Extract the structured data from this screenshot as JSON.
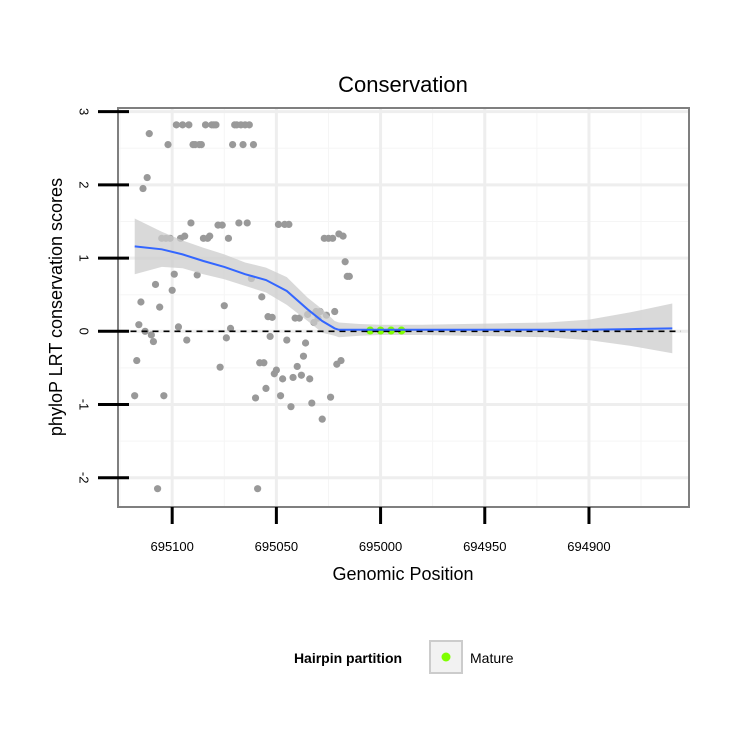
{
  "chart_data": {
    "type": "scatter",
    "title": "Conservation",
    "xlabel": "Genomic Position",
    "ylabel": "phyloP LRT conservation scores",
    "x_reversed": true,
    "xlim": [
      695126,
      694852
    ],
    "ylim": [
      -2.4,
      3.05
    ],
    "x_ticks": [
      695100,
      695050,
      695000,
      694950,
      694900
    ],
    "x_tick_labels": [
      "695100",
      "695050",
      "695000",
      "694950",
      "694900"
    ],
    "y_ticks": [
      -2,
      -1,
      0,
      1,
      2,
      3
    ],
    "y_tick_labels": [
      "-2",
      "-1",
      "0",
      "1",
      "2",
      "3"
    ],
    "grid": true,
    "reference_line": {
      "y": 0,
      "style": "dashed"
    },
    "colors": {
      "points": "#999999",
      "smooth": "#3366ff",
      "ribbon": "#cccccc",
      "mature": "#7fff00",
      "reference": "#000000"
    },
    "series": [
      {
        "name": "scores",
        "points": [
          [
            695118,
            -0.88
          ],
          [
            695117,
            -0.4
          ],
          [
            695116,
            0.09
          ],
          [
            695115,
            0.4
          ],
          [
            695114,
            1.95
          ],
          [
            695113,
            0.0
          ],
          [
            695112,
            2.1
          ],
          [
            695111,
            2.7
          ],
          [
            695110,
            -0.05
          ],
          [
            695109,
            -0.14
          ],
          [
            695108,
            0.64
          ],
          [
            695107,
            -2.15
          ],
          [
            695106,
            0.33
          ],
          [
            695105,
            1.27
          ],
          [
            695104,
            -0.88
          ],
          [
            695103,
            1.27
          ],
          [
            695102,
            2.55
          ],
          [
            695101,
            1.27
          ],
          [
            695100,
            0.56
          ],
          [
            695099,
            0.78
          ],
          [
            695098,
            2.82
          ],
          [
            695097,
            0.06
          ],
          [
            695096,
            1.27
          ],
          [
            695095,
            2.82
          ],
          [
            695094,
            1.3
          ],
          [
            695093,
            -0.12
          ],
          [
            695092,
            2.82
          ],
          [
            695091,
            1.48
          ],
          [
            695090,
            2.55
          ],
          [
            695089,
            2.55
          ],
          [
            695088,
            0.77
          ],
          [
            695087,
            2.55
          ],
          [
            695086,
            2.55
          ],
          [
            695085,
            1.27
          ],
          [
            695084,
            2.82
          ],
          [
            695083,
            1.27
          ],
          [
            695082,
            1.3
          ],
          [
            695081,
            2.82
          ],
          [
            695080,
            2.82
          ],
          [
            695079,
            2.82
          ],
          [
            695078,
            1.45
          ],
          [
            695077,
            -0.49
          ],
          [
            695076,
            1.45
          ],
          [
            695075,
            0.35
          ],
          [
            695074,
            -0.09
          ],
          [
            695073,
            1.27
          ],
          [
            695072,
            0.04
          ],
          [
            695071,
            2.55
          ],
          [
            695070,
            2.82
          ],
          [
            695069,
            2.82
          ],
          [
            695068,
            1.48
          ],
          [
            695067,
            2.82
          ],
          [
            695066,
            2.55
          ],
          [
            695065,
            2.82
          ],
          [
            695064,
            1.48
          ],
          [
            695063,
            2.82
          ],
          [
            695062,
            0.72
          ],
          [
            695061,
            2.55
          ],
          [
            695060,
            -0.91
          ],
          [
            695059,
            -2.15
          ],
          [
            695058,
            -0.43
          ],
          [
            695057,
            0.47
          ],
          [
            695056,
            -0.43
          ],
          [
            695055,
            -0.78
          ],
          [
            695054,
            0.2
          ],
          [
            695053,
            -0.07
          ],
          [
            695052,
            0.19
          ],
          [
            695051,
            -0.58
          ],
          [
            695050,
            -0.53
          ],
          [
            695049,
            1.46
          ],
          [
            695048,
            -0.88
          ],
          [
            695047,
            -0.65
          ],
          [
            695046,
            1.46
          ],
          [
            695045,
            -0.12
          ],
          [
            695044,
            1.46
          ],
          [
            695043,
            -1.03
          ],
          [
            695042,
            -0.63
          ],
          [
            695041,
            0.18
          ],
          [
            695040,
            -0.48
          ],
          [
            695039,
            0.18
          ],
          [
            695038,
            -0.6
          ],
          [
            695037,
            -0.34
          ],
          [
            695036,
            -0.16
          ],
          [
            695035,
            0.23
          ],
          [
            695034,
            -0.65
          ],
          [
            695033,
            -0.98
          ],
          [
            695032,
            0.12
          ],
          [
            695031,
            0.27
          ],
          [
            695030,
            0.18
          ],
          [
            695029,
            0.27
          ],
          [
            695028,
            -1.2
          ],
          [
            695027,
            1.27
          ],
          [
            695026,
            0.22
          ],
          [
            695025,
            1.27
          ],
          [
            695024,
            -0.9
          ],
          [
            695023,
            1.27
          ],
          [
            695022,
            0.27
          ],
          [
            695021,
            -0.45
          ],
          [
            695020,
            1.33
          ],
          [
            695019,
            -0.4
          ],
          [
            695018,
            1.3
          ],
          [
            695017,
            0.95
          ],
          [
            695016,
            0.75
          ],
          [
            695015,
            0.75
          ]
        ]
      },
      {
        "name": "Mature",
        "points": [
          [
            695005,
            0.01
          ],
          [
            695000,
            0.01
          ],
          [
            694995,
            0.01
          ],
          [
            694990,
            0.01
          ]
        ]
      }
    ],
    "smooth": {
      "method": "loess",
      "x": [
        695118,
        695105,
        695095,
        695085,
        695075,
        695065,
        695055,
        695045,
        695035,
        695028,
        695022,
        695020,
        695010,
        695000,
        694990,
        694980,
        694960,
        694940,
        694920,
        694900,
        694880,
        694860
      ],
      "y": [
        1.16,
        1.12,
        1.05,
        0.96,
        0.88,
        0.78,
        0.7,
        0.55,
        0.3,
        0.14,
        0.04,
        0.02,
        0.02,
        0.02,
        0.02,
        0.02,
        0.02,
        0.02,
        0.02,
        0.02,
        0.03,
        0.04
      ],
      "se_lower": [
        0.78,
        0.88,
        0.86,
        0.78,
        0.71,
        0.62,
        0.53,
        0.36,
        0.14,
        -0.02,
        -0.06,
        -0.08,
        -0.06,
        -0.05,
        -0.05,
        -0.05,
        -0.06,
        -0.07,
        -0.08,
        -0.12,
        -0.2,
        -0.3
      ],
      "se_upper": [
        1.54,
        1.36,
        1.24,
        1.14,
        1.05,
        0.94,
        0.87,
        0.74,
        0.46,
        0.3,
        0.14,
        0.12,
        0.1,
        0.09,
        0.09,
        0.09,
        0.1,
        0.11,
        0.12,
        0.16,
        0.26,
        0.38
      ]
    },
    "legend": {
      "title": "Hairpin partition",
      "entries": [
        "Mature"
      ],
      "position": "bottom"
    }
  }
}
